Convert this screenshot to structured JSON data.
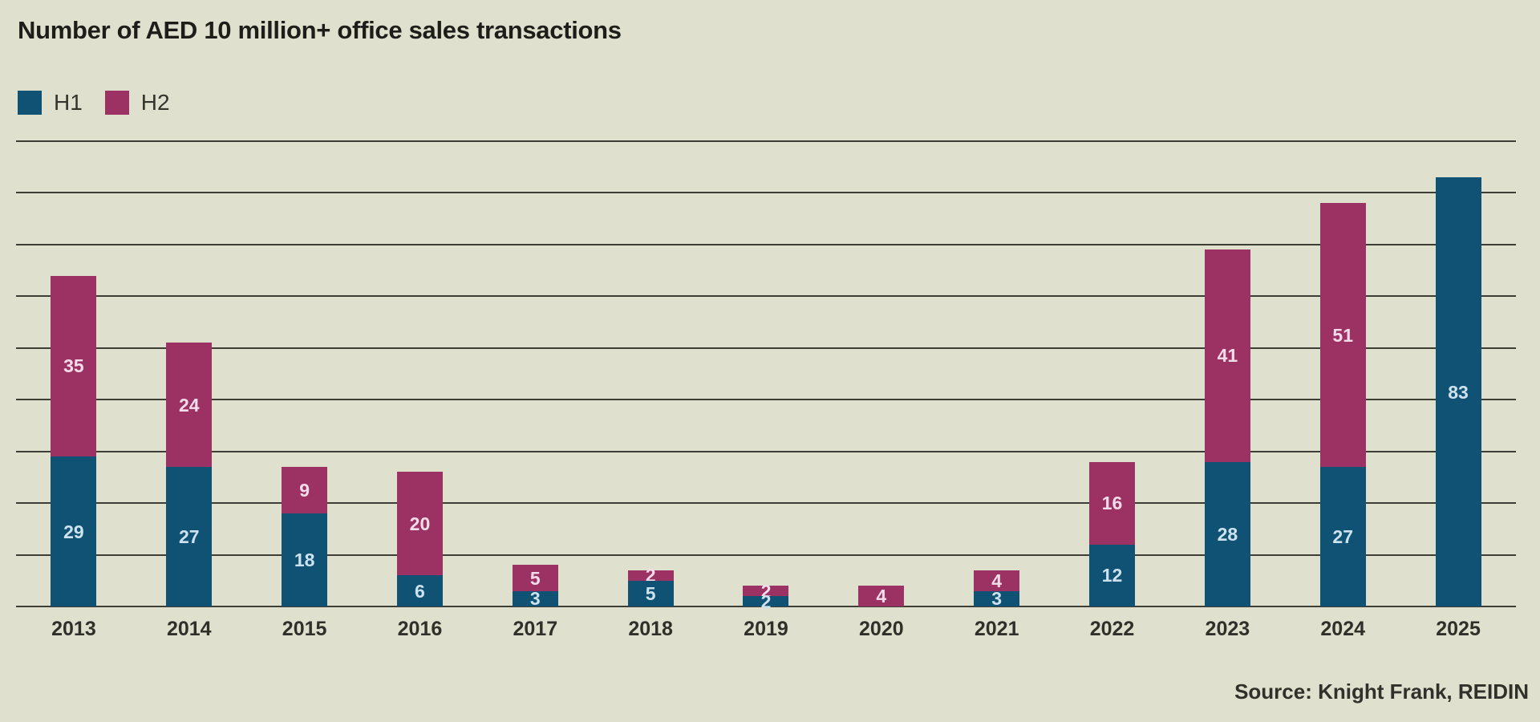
{
  "title": "Number of AED 10 million+ office sales transactions",
  "source": "Source: Knight Frank, REIDIN",
  "colors": {
    "background": "#dfe0cd",
    "gridline": "#3c3e33",
    "title_text": "#1d1e19",
    "axis_label_text": "#2f3029",
    "h1_bar": "#0f5274",
    "h2_bar": "#9c3263"
  },
  "legend": {
    "items": [
      {
        "label": "H1"
      },
      {
        "label": "H2"
      }
    ]
  },
  "chart_data": {
    "type": "bar",
    "stacked": true,
    "title": "Number of AED 10 million+ office sales transactions",
    "source": "Source: Knight Frank, REIDIN",
    "categories": [
      "2013",
      "2014",
      "2015",
      "2016",
      "2017",
      "2018",
      "2019",
      "2020",
      "2021",
      "2022",
      "2023",
      "2024",
      "2025"
    ],
    "series": [
      {
        "name": "H1",
        "color": "#0f5274",
        "label_color": "#cde2ee",
        "values": [
          29,
          27,
          18,
          6,
          3,
          5,
          2,
          0,
          3,
          12,
          28,
          27,
          83
        ]
      },
      {
        "name": "H2",
        "color": "#9c3263",
        "label_color": "#f4dcea",
        "values": [
          35,
          24,
          9,
          20,
          5,
          2,
          2,
          4,
          4,
          16,
          41,
          51,
          0
        ]
      }
    ],
    "totals": [
      64,
      51,
      27,
      26,
      8,
      7,
      4,
      4,
      7,
      28,
      69,
      78,
      83
    ],
    "xlabel": "",
    "ylabel": "",
    "ylim": [
      0,
      90
    ],
    "grid_step": 10,
    "grid": "horizontal",
    "y_tick_labels_visible": false,
    "legend_position": "top-left",
    "data_labels": "inside-segment-center"
  }
}
